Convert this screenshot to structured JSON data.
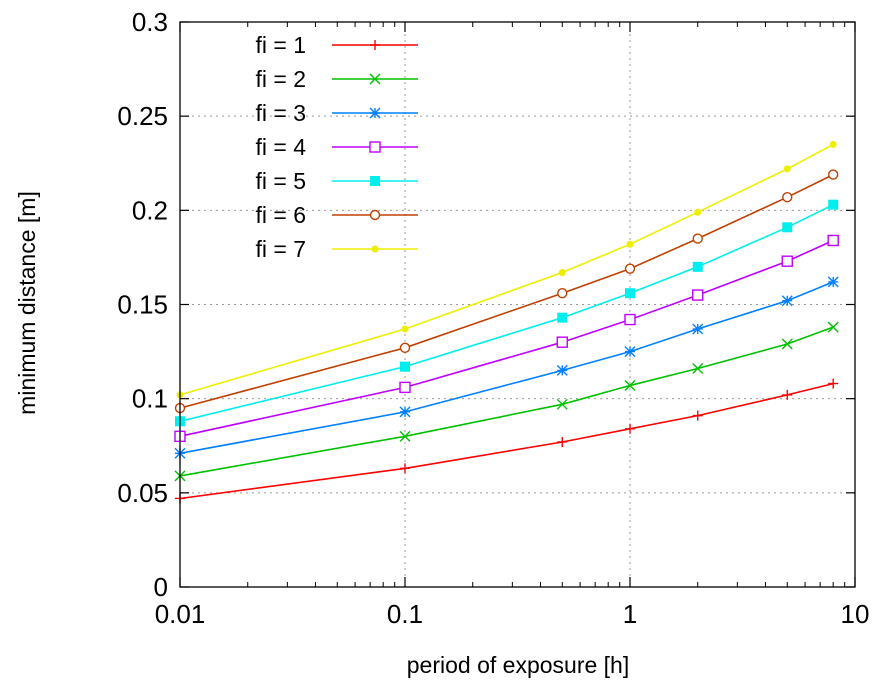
{
  "chart_data": {
    "type": "line",
    "title": "",
    "xlabel": "period of exposure [h]",
    "ylabel": "minimum distance [m]",
    "xscale": "log",
    "xlim": [
      0.01,
      10
    ],
    "ylim": [
      0,
      0.3
    ],
    "grid": true,
    "legend_position": "top-left",
    "x_ticks": [
      {
        "value": 0.01,
        "label": "0.01"
      },
      {
        "value": 0.1,
        "label": "0.1"
      },
      {
        "value": 1,
        "label": "1"
      },
      {
        "value": 10,
        "label": "10"
      }
    ],
    "y_ticks": [
      {
        "value": 0,
        "label": "0"
      },
      {
        "value": 0.05,
        "label": "0.05"
      },
      {
        "value": 0.1,
        "label": "0.1"
      },
      {
        "value": 0.15,
        "label": "0.15"
      },
      {
        "value": 0.2,
        "label": "0.2"
      },
      {
        "value": 0.25,
        "label": "0.25"
      },
      {
        "value": 0.3,
        "label": "0.3"
      }
    ],
    "x": [
      0.01,
      0.1,
      0.5,
      1,
      2,
      5,
      8
    ],
    "series": [
      {
        "name": "fi = 1",
        "color": "#ff0000",
        "marker": "plus",
        "values": [
          0.047,
          0.063,
          0.077,
          0.084,
          0.091,
          0.102,
          0.108
        ]
      },
      {
        "name": "fi = 2",
        "color": "#00c000",
        "marker": "cross",
        "values": [
          0.059,
          0.08,
          0.097,
          0.107,
          0.116,
          0.129,
          0.138
        ]
      },
      {
        "name": "fi = 3",
        "color": "#0080ff",
        "marker": "star",
        "values": [
          0.071,
          0.093,
          0.115,
          0.125,
          0.137,
          0.152,
          0.162
        ]
      },
      {
        "name": "fi = 4",
        "color": "#c000ff",
        "marker": "open-square",
        "values": [
          0.08,
          0.106,
          0.13,
          0.142,
          0.155,
          0.173,
          0.184
        ]
      },
      {
        "name": "fi = 5",
        "color": "#00eeee",
        "marker": "filled-square",
        "values": [
          0.088,
          0.117,
          0.143,
          0.156,
          0.17,
          0.191,
          0.203
        ]
      },
      {
        "name": "fi = 6",
        "color": "#c04000",
        "marker": "open-circle",
        "values": [
          0.095,
          0.127,
          0.156,
          0.169,
          0.185,
          0.207,
          0.219
        ]
      },
      {
        "name": "fi = 7",
        "color": "#eeee00",
        "marker": "filled-circle",
        "values": [
          0.102,
          0.137,
          0.167,
          0.182,
          0.199,
          0.222,
          0.235
        ]
      }
    ]
  }
}
